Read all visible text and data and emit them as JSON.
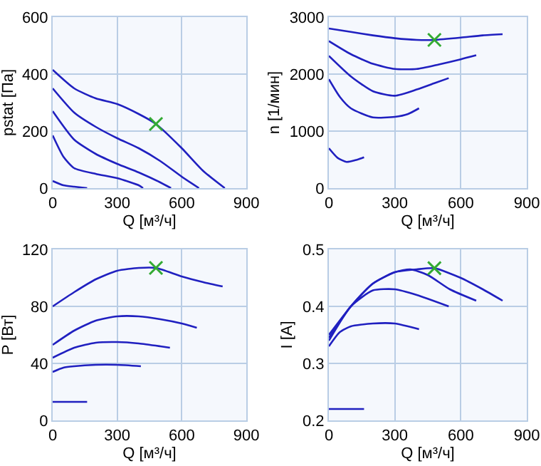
{
  "chart_data": [
    {
      "type": "line",
      "xlabel": "Q [м³/ч]",
      "ylabel": "pstat [Па]",
      "xlim": [
        0,
        900
      ],
      "xticks": [
        0,
        300,
        600,
        900
      ],
      "ylim": [
        0,
        600
      ],
      "yticks": [
        0,
        200,
        400,
        600
      ],
      "grid": true,
      "series": [
        {
          "color": "#2020c0",
          "x": [
            0,
            100,
            200,
            300,
            400,
            480,
            600,
            700,
            800
          ],
          "values": [
            415,
            350,
            315,
            295,
            260,
            225,
            140,
            60,
            0
          ]
        },
        {
          "color": "#2020c0",
          "x": [
            0,
            100,
            200,
            300,
            400,
            500,
            600,
            680
          ],
          "values": [
            350,
            265,
            215,
            175,
            140,
            95,
            40,
            0
          ]
        },
        {
          "color": "#2020c0",
          "x": [
            0,
            100,
            200,
            300,
            400,
            500,
            550
          ],
          "values": [
            270,
            170,
            120,
            85,
            55,
            20,
            0
          ]
        },
        {
          "color": "#2020c0",
          "x": [
            0,
            50,
            100,
            200,
            300,
            400,
            420
          ],
          "values": [
            185,
            110,
            70,
            50,
            35,
            10,
            0
          ]
        },
        {
          "color": "#2020c0",
          "x": [
            0,
            50,
            100,
            160
          ],
          "values": [
            25,
            10,
            5,
            0
          ]
        },
        {
          "type": "scatter",
          "marker": "cross",
          "color": "#33aa33",
          "x": [
            480
          ],
          "values": [
            225
          ]
        }
      ]
    },
    {
      "type": "line",
      "xlabel": "Q [м³/ч]",
      "ylabel": "n [1/мин]",
      "xlim": [
        0,
        900
      ],
      "xticks": [
        0,
        300,
        600,
        900
      ],
      "ylim": [
        0,
        3000
      ],
      "yticks": [
        0,
        1000,
        2000,
        3000
      ],
      "grid": true,
      "series": [
        {
          "color": "#2020c0",
          "x": [
            0,
            100,
            200,
            300,
            400,
            480,
            600,
            700,
            790
          ],
          "values": [
            2800,
            2740,
            2680,
            2630,
            2600,
            2600,
            2640,
            2680,
            2700
          ]
        },
        {
          "color": "#2020c0",
          "x": [
            0,
            100,
            200,
            300,
            400,
            500,
            600,
            670
          ],
          "values": [
            2580,
            2350,
            2180,
            2090,
            2090,
            2170,
            2260,
            2330
          ]
        },
        {
          "color": "#2020c0",
          "x": [
            0,
            100,
            200,
            300,
            400,
            480,
            545
          ],
          "values": [
            2320,
            1960,
            1700,
            1620,
            1730,
            1840,
            1930
          ]
        },
        {
          "color": "#2020c0",
          "x": [
            0,
            50,
            100,
            200,
            300,
            360,
            410
          ],
          "values": [
            1910,
            1600,
            1400,
            1240,
            1250,
            1300,
            1400
          ]
        },
        {
          "color": "#2020c0",
          "x": [
            0,
            40,
            80,
            120,
            160
          ],
          "values": [
            700,
            530,
            460,
            490,
            540
          ]
        },
        {
          "type": "scatter",
          "marker": "cross",
          "color": "#33aa33",
          "x": [
            480
          ],
          "values": [
            2600
          ]
        }
      ]
    },
    {
      "type": "line",
      "xlabel": "Q [м³/ч]",
      "ylabel": "P [Вт]",
      "xlim": [
        0,
        900
      ],
      "xticks": [
        0,
        300,
        600,
        900
      ],
      "ylim": [
        0,
        120
      ],
      "yticks": [
        0,
        40,
        80,
        120
      ],
      "grid": true,
      "series": [
        {
          "color": "#2020c0",
          "x": [
            0,
            100,
            200,
            300,
            400,
            480,
            600,
            700,
            790
          ],
          "values": [
            80,
            90,
            99,
            105,
            107,
            107,
            101,
            97,
            94
          ]
        },
        {
          "color": "#2020c0",
          "x": [
            0,
            100,
            200,
            300,
            400,
            500,
            600,
            670
          ],
          "values": [
            53,
            63,
            70,
            73,
            73,
            71,
            68,
            65
          ]
        },
        {
          "color": "#2020c0",
          "x": [
            0,
            100,
            200,
            300,
            400,
            500,
            545
          ],
          "values": [
            44,
            51,
            54.5,
            55,
            54,
            52,
            51
          ]
        },
        {
          "color": "#2020c0",
          "x": [
            0,
            50,
            100,
            200,
            300,
            410
          ],
          "values": [
            34,
            37,
            38,
            39,
            39,
            38
          ]
        },
        {
          "color": "#2020c0",
          "x": [
            0,
            160
          ],
          "values": [
            13,
            13
          ]
        },
        {
          "type": "scatter",
          "marker": "cross",
          "color": "#33aa33",
          "x": [
            480
          ],
          "values": [
            107
          ]
        }
      ]
    },
    {
      "type": "line",
      "xlabel": "Q [м³/ч]",
      "ylabel": "I [A]",
      "xlim": [
        0,
        900
      ],
      "xticks": [
        0,
        300,
        600,
        900
      ],
      "ylim": [
        0.2,
        0.5
      ],
      "yticks": [
        0.2,
        0.3,
        0.4,
        0.5
      ],
      "grid": true,
      "series": [
        {
          "color": "#2020c0",
          "x": [
            0,
            100,
            200,
            300,
            400,
            480,
            600,
            700,
            790
          ],
          "values": [
            0.35,
            0.4,
            0.44,
            0.46,
            0.465,
            0.467,
            0.45,
            0.43,
            0.41
          ]
        },
        {
          "color": "#2020c0",
          "x": [
            0,
            100,
            200,
            300,
            370,
            450,
            550,
            670
          ],
          "values": [
            0.345,
            0.4,
            0.44,
            0.46,
            0.465,
            0.455,
            0.43,
            0.41
          ]
        },
        {
          "color": "#2020c0",
          "x": [
            0,
            100,
            200,
            300,
            400,
            545
          ],
          "values": [
            0.34,
            0.4,
            0.428,
            0.43,
            0.42,
            0.4
          ]
        },
        {
          "color": "#2020c0",
          "x": [
            0,
            50,
            100,
            200,
            300,
            410
          ],
          "values": [
            0.33,
            0.355,
            0.365,
            0.37,
            0.37,
            0.36
          ]
        },
        {
          "color": "#2020c0",
          "x": [
            0,
            160
          ],
          "values": [
            0.22,
            0.22
          ]
        },
        {
          "type": "scatter",
          "marker": "cross",
          "color": "#33aa33",
          "x": [
            480
          ],
          "values": [
            0.467
          ]
        }
      ]
    }
  ]
}
